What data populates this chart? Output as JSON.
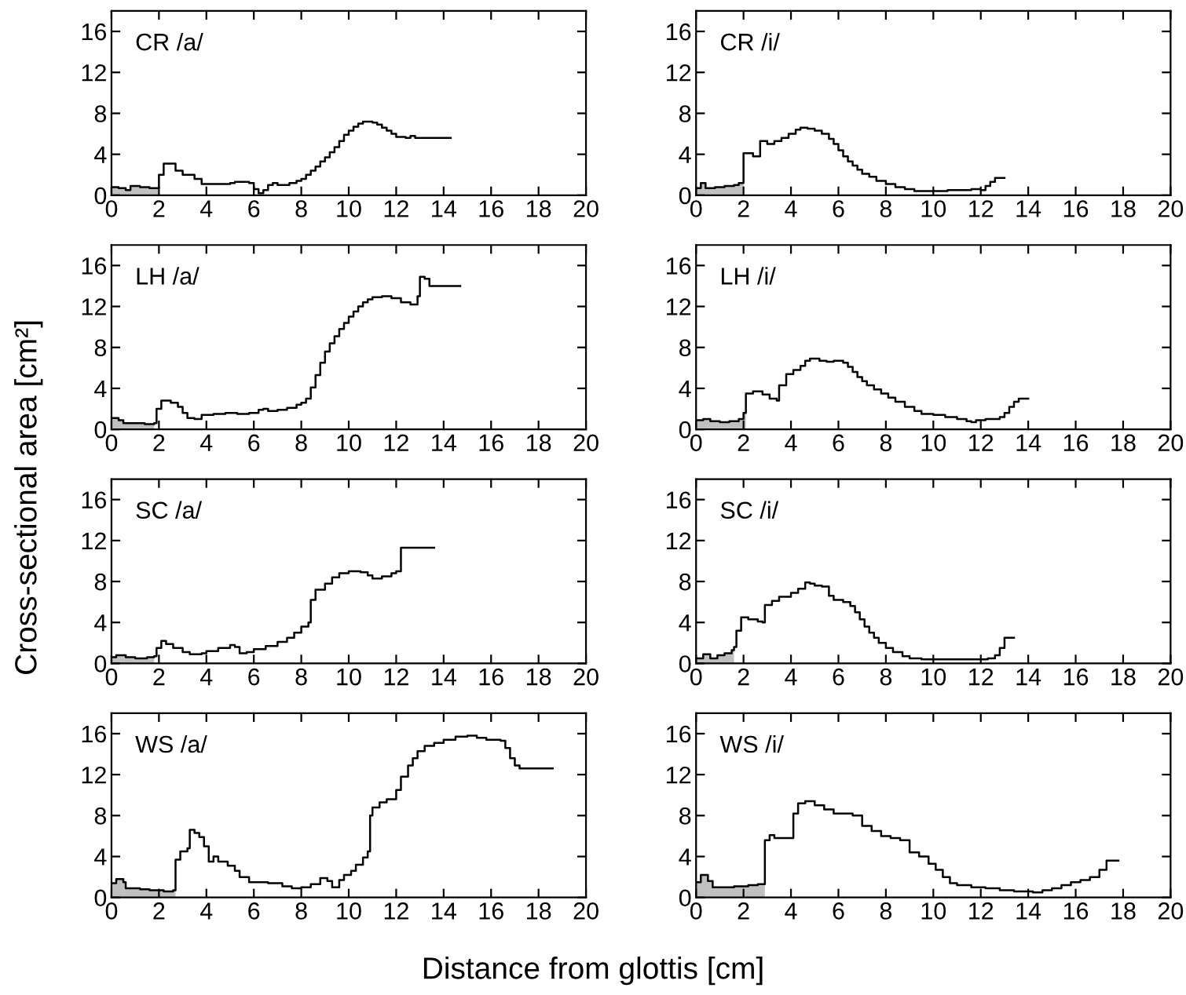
{
  "chart_data": [
    {
      "type": "step",
      "title": "CR /a/",
      "xlabel": "Distance from glottis [cm]",
      "ylabel": "Cross-sectional area [cm²]",
      "xlim": [
        0,
        20
      ],
      "ylim": [
        0,
        18
      ],
      "xticks": [
        0,
        2,
        4,
        6,
        8,
        10,
        12,
        14,
        16,
        18,
        20
      ],
      "yticks": [
        0,
        4,
        8,
        12,
        16
      ],
      "series": [
        {
          "type": "area",
          "color": "#c0c0c0",
          "x": [
            0,
            0.3,
            0.6,
            0.8,
            1.2,
            1.6,
            2.0
          ],
          "values": [
            0.8,
            0.7,
            0.5,
            0.9,
            0.8,
            0.7,
            0.7
          ]
        },
        {
          "color": "#000000",
          "x": [
            0,
            0.3,
            0.6,
            0.8,
            1.2,
            1.6,
            2.0,
            2.2,
            2.7,
            3.0,
            3.5,
            3.8,
            5.0,
            5.2,
            5.8,
            6.0,
            6.2,
            6.4,
            6.6,
            6.8,
            7.0,
            7.5,
            7.8,
            8.0,
            8.2,
            8.4,
            8.6,
            8.8,
            9.0,
            9.2,
            9.4,
            9.6,
            9.8,
            10.0,
            10.2,
            10.4,
            10.6,
            11.0,
            11.2,
            11.4,
            11.6,
            11.8,
            12.0,
            12.4,
            12.6,
            12.8,
            14.3
          ],
          "values": [
            0.8,
            0.7,
            0.5,
            0.9,
            0.8,
            0.7,
            2.0,
            3.1,
            2.4,
            2.0,
            1.6,
            1.1,
            1.2,
            1.3,
            1.2,
            0.6,
            0.2,
            0.5,
            1.0,
            1.2,
            1.0,
            1.2,
            1.4,
            1.6,
            2.0,
            2.4,
            2.8,
            3.3,
            3.7,
            4.2,
            4.7,
            5.3,
            5.9,
            6.3,
            6.7,
            7.0,
            7.2,
            7.1,
            6.9,
            6.6,
            6.3,
            6.0,
            5.7,
            5.6,
            5.8,
            5.6,
            5.6
          ]
        }
      ]
    },
    {
      "type": "step",
      "title": "CR /i/",
      "xlim": [
        0,
        20
      ],
      "ylim": [
        0,
        18
      ],
      "xticks": [
        0,
        2,
        4,
        6,
        8,
        10,
        12,
        14,
        16,
        18,
        20
      ],
      "yticks": [
        0,
        4,
        8,
        12,
        16
      ],
      "series": [
        {
          "type": "area",
          "color": "#c0c0c0",
          "x": [
            0,
            0.2,
            0.4,
            0.8,
            1.2,
            1.6,
            1.8,
            2.0
          ],
          "values": [
            0.7,
            1.2,
            0.7,
            0.8,
            0.9,
            1.0,
            1.2,
            1.2
          ]
        },
        {
          "color": "#000000",
          "x": [
            0,
            0.2,
            0.4,
            0.8,
            1.2,
            1.6,
            1.8,
            2.0,
            2.4,
            2.7,
            3.0,
            3.3,
            3.6,
            3.9,
            4.2,
            4.4,
            4.7,
            5.0,
            5.3,
            5.6,
            5.8,
            6.0,
            6.2,
            6.4,
            6.6,
            6.8,
            7.0,
            7.3,
            7.6,
            8.0,
            8.4,
            8.8,
            9.2,
            10.2,
            10.6,
            11.2,
            11.6,
            12.0,
            12.2,
            12.4,
            12.6,
            13.0
          ],
          "values": [
            0.7,
            1.2,
            0.7,
            0.8,
            0.9,
            1.0,
            1.2,
            4.1,
            3.8,
            5.3,
            5.0,
            5.3,
            5.6,
            6.0,
            6.4,
            6.6,
            6.5,
            6.3,
            6.0,
            5.5,
            5.0,
            4.4,
            3.8,
            3.3,
            2.9,
            2.5,
            2.1,
            1.8,
            1.4,
            1.1,
            0.8,
            0.6,
            0.4,
            0.4,
            0.5,
            0.5,
            0.6,
            0.5,
            0.9,
            1.3,
            1.7,
            1.7
          ]
        }
      ]
    },
    {
      "type": "step",
      "title": "LH /a/",
      "xlim": [
        0,
        20
      ],
      "ylim": [
        0,
        18
      ],
      "xticks": [
        0,
        2,
        4,
        6,
        8,
        10,
        12,
        14,
        16,
        18,
        20
      ],
      "yticks": [
        0,
        4,
        8,
        12,
        16
      ],
      "series": [
        {
          "type": "area",
          "color": "#c0c0c0",
          "x": [
            0,
            0.3,
            0.5,
            1.0,
            1.4,
            1.8
          ],
          "values": [
            1.1,
            0.9,
            0.6,
            0.6,
            0.5,
            0.5
          ]
        },
        {
          "color": "#000000",
          "x": [
            0,
            0.3,
            0.5,
            1.0,
            1.4,
            1.8,
            1.9,
            2.1,
            2.5,
            2.8,
            3.0,
            3.2,
            3.5,
            3.8,
            4.3,
            4.8,
            5.3,
            5.8,
            6.2,
            6.4,
            6.6,
            7.0,
            7.4,
            7.8,
            8.0,
            8.2,
            8.4,
            8.6,
            8.8,
            9.0,
            9.2,
            9.4,
            9.6,
            9.8,
            10.0,
            10.2,
            10.4,
            10.6,
            10.8,
            11.0,
            11.4,
            11.8,
            12.2,
            12.6,
            12.9,
            13.0,
            13.2,
            13.4,
            14.7
          ],
          "values": [
            1.1,
            0.9,
            0.6,
            0.6,
            0.5,
            0.6,
            2.0,
            2.8,
            2.6,
            2.2,
            1.6,
            1.1,
            1.0,
            1.4,
            1.5,
            1.6,
            1.5,
            1.6,
            1.9,
            2.0,
            1.8,
            1.9,
            2.1,
            2.4,
            2.6,
            3.0,
            4.1,
            5.3,
            6.5,
            7.6,
            8.4,
            9.1,
            9.8,
            10.4,
            11.0,
            11.5,
            12.0,
            12.4,
            12.7,
            12.9,
            13.0,
            12.8,
            12.4,
            12.2,
            13.0,
            14.9,
            14.7,
            14.0,
            14.0
          ]
        }
      ]
    },
    {
      "type": "step",
      "title": "LH /i/",
      "xlim": [
        0,
        20
      ],
      "ylim": [
        0,
        18
      ],
      "xticks": [
        0,
        2,
        4,
        6,
        8,
        10,
        12,
        14,
        16,
        18,
        20
      ],
      "yticks": [
        0,
        4,
        8,
        12,
        16
      ],
      "series": [
        {
          "type": "area",
          "color": "#c0c0c0",
          "x": [
            0,
            0.3,
            0.6,
            1.0,
            1.4,
            1.8,
            2.0,
            2.1
          ],
          "values": [
            0.9,
            1.0,
            0.8,
            0.7,
            0.8,
            1.0,
            1.6,
            1.6
          ]
        },
        {
          "color": "#000000",
          "x": [
            0,
            0.3,
            0.6,
            1.0,
            1.4,
            1.8,
            2.0,
            2.1,
            2.4,
            2.8,
            3.1,
            3.4,
            3.5,
            3.8,
            4.1,
            4.4,
            4.6,
            4.8,
            5.2,
            5.5,
            5.8,
            6.2,
            6.4,
            6.6,
            6.8,
            7.0,
            7.2,
            7.5,
            7.8,
            8.1,
            8.4,
            8.8,
            9.2,
            9.5,
            10.0,
            10.5,
            11.0,
            11.4,
            11.6,
            11.8,
            12.2,
            12.8,
            13.0,
            13.2,
            13.4,
            13.6,
            14.0
          ],
          "values": [
            0.9,
            1.0,
            0.8,
            0.7,
            0.8,
            1.0,
            1.6,
            3.5,
            3.7,
            3.4,
            3.0,
            2.8,
            4.3,
            5.4,
            5.8,
            6.2,
            6.7,
            6.9,
            6.7,
            6.6,
            6.7,
            6.5,
            6.1,
            5.6,
            5.1,
            4.7,
            4.3,
            3.9,
            3.5,
            3.1,
            2.7,
            2.2,
            1.8,
            1.5,
            1.4,
            1.2,
            1.0,
            0.8,
            0.7,
            0.9,
            1.0,
            1.2,
            1.6,
            2.2,
            2.7,
            3.0,
            3.0
          ]
        }
      ]
    },
    {
      "type": "step",
      "title": "SC /a/",
      "xlim": [
        0,
        20
      ],
      "ylim": [
        0,
        18
      ],
      "xticks": [
        0,
        2,
        4,
        6,
        8,
        10,
        12,
        14,
        16,
        18,
        20
      ],
      "yticks": [
        0,
        4,
        8,
        12,
        16
      ],
      "series": [
        {
          "type": "area",
          "color": "#c0c0c0",
          "x": [
            0,
            0.2,
            0.6,
            1.0,
            1.5,
            1.8
          ],
          "values": [
            0.6,
            0.8,
            0.6,
            0.5,
            0.6,
            0.6
          ]
        },
        {
          "color": "#000000",
          "x": [
            0,
            0.2,
            0.6,
            1.0,
            1.5,
            1.8,
            1.9,
            2.1,
            2.3,
            2.6,
            3.0,
            3.3,
            3.8,
            4.0,
            4.5,
            5.0,
            5.2,
            5.4,
            5.7,
            6.0,
            6.5,
            7.0,
            7.4,
            7.7,
            8.0,
            8.3,
            8.4,
            8.6,
            9.0,
            9.3,
            9.6,
            10.0,
            10.5,
            10.8,
            11.0,
            11.4,
            11.8,
            12.0,
            12.2,
            13.6
          ],
          "values": [
            0.6,
            0.8,
            0.6,
            0.5,
            0.6,
            0.7,
            1.5,
            2.2,
            1.9,
            1.5,
            1.1,
            0.9,
            1.0,
            1.2,
            1.5,
            1.8,
            1.6,
            1.0,
            1.1,
            1.4,
            1.7,
            2.1,
            2.5,
            3.0,
            3.6,
            4.0,
            6.2,
            7.2,
            7.8,
            8.4,
            8.8,
            9.0,
            8.9,
            8.6,
            8.3,
            8.5,
            8.8,
            9.0,
            11.3,
            11.3
          ]
        }
      ]
    },
    {
      "type": "step",
      "title": "SC /i/",
      "xlim": [
        0,
        20
      ],
      "ylim": [
        0,
        18
      ],
      "xticks": [
        0,
        2,
        4,
        6,
        8,
        10,
        12,
        14,
        16,
        18,
        20
      ],
      "yticks": [
        0,
        4,
        8,
        12,
        16
      ],
      "series": [
        {
          "type": "area",
          "color": "#c0c0c0",
          "x": [
            0,
            0.3,
            0.6,
            0.9,
            1.2,
            1.5,
            1.6
          ],
          "values": [
            0.5,
            0.9,
            0.5,
            0.8,
            1.0,
            1.3,
            1.3
          ]
        },
        {
          "color": "#000000",
          "x": [
            0,
            0.3,
            0.6,
            0.9,
            1.2,
            1.5,
            1.6,
            1.7,
            1.9,
            2.2,
            2.6,
            2.8,
            2.9,
            3.2,
            3.5,
            4.0,
            4.3,
            4.6,
            4.8,
            5.0,
            5.3,
            5.6,
            5.8,
            6.2,
            6.5,
            6.7,
            6.9,
            7.1,
            7.3,
            7.5,
            7.7,
            8.0,
            8.3,
            8.7,
            9.0,
            9.5,
            12.0,
            12.3,
            12.6,
            12.8,
            13.0,
            13.4
          ],
          "values": [
            0.5,
            0.9,
            0.5,
            0.8,
            1.0,
            1.3,
            1.6,
            3.2,
            4.5,
            4.3,
            4.1,
            4.0,
            5.7,
            6.1,
            6.5,
            6.9,
            7.3,
            7.9,
            7.8,
            7.6,
            7.5,
            6.6,
            6.2,
            6.0,
            5.6,
            5.0,
            4.3,
            3.6,
            3.0,
            2.5,
            2.0,
            1.5,
            1.1,
            0.7,
            0.5,
            0.4,
            0.4,
            0.5,
            0.8,
            1.5,
            2.5,
            2.5
          ]
        }
      ]
    },
    {
      "type": "step",
      "title": "WS /a/",
      "xlim": [
        0,
        20
      ],
      "ylim": [
        0,
        18
      ],
      "xticks": [
        0,
        2,
        4,
        6,
        8,
        10,
        12,
        14,
        16,
        18,
        20
      ],
      "yticks": [
        0,
        4,
        8,
        12,
        16
      ],
      "series": [
        {
          "type": "area",
          "color": "#c0c0c0",
          "x": [
            0,
            0.2,
            0.5,
            0.6,
            1.2,
            1.6,
            2.2,
            2.7
          ],
          "values": [
            1.4,
            1.8,
            1.5,
            0.9,
            0.8,
            0.7,
            0.6,
            0.6
          ]
        },
        {
          "color": "#000000",
          "x": [
            0,
            0.2,
            0.5,
            0.6,
            1.2,
            1.6,
            2.2,
            2.6,
            2.7,
            2.9,
            3.2,
            3.3,
            3.5,
            3.7,
            3.9,
            4.1,
            4.3,
            4.5,
            4.9,
            5.2,
            5.4,
            5.8,
            6.6,
            7.2,
            7.6,
            8.0,
            8.4,
            8.8,
            9.1,
            9.3,
            9.6,
            9.8,
            10.1,
            10.3,
            10.6,
            10.8,
            10.9,
            11.0,
            11.3,
            11.6,
            12.0,
            12.2,
            12.5,
            12.7,
            12.9,
            13.2,
            13.6,
            14.0,
            14.5,
            15.0,
            15.4,
            15.8,
            16.4,
            16.6,
            16.8,
            17.0,
            17.2,
            18.6
          ],
          "values": [
            1.4,
            1.8,
            1.5,
            0.9,
            0.8,
            0.7,
            0.6,
            0.7,
            3.7,
            4.5,
            4.8,
            6.6,
            6.3,
            5.9,
            5.0,
            3.5,
            4.0,
            3.5,
            3.1,
            2.6,
            2.0,
            1.5,
            1.4,
            1.1,
            0.9,
            1.0,
            1.3,
            1.9,
            1.6,
            1.0,
            1.7,
            2.2,
            2.6,
            3.2,
            3.9,
            4.5,
            8.0,
            8.8,
            9.3,
            9.6,
            10.5,
            11.8,
            12.9,
            13.6,
            14.3,
            14.8,
            15.1,
            15.4,
            15.7,
            15.8,
            15.6,
            15.4,
            15.3,
            14.6,
            13.6,
            12.9,
            12.6,
            12.6
          ]
        }
      ]
    },
    {
      "type": "step",
      "title": "WS /i/",
      "xlim": [
        0,
        20
      ],
      "ylim": [
        0,
        18
      ],
      "xticks": [
        0,
        2,
        4,
        6,
        8,
        10,
        12,
        14,
        16,
        18,
        20
      ],
      "yticks": [
        0,
        4,
        8,
        12,
        16
      ],
      "series": [
        {
          "type": "area",
          "color": "#c0c0c0",
          "x": [
            0,
            0.2,
            0.5,
            0.7,
            1.2,
            1.6,
            2.2,
            2.6,
            2.9
          ],
          "values": [
            1.5,
            2.2,
            1.6,
            1.0,
            1.0,
            1.1,
            1.2,
            1.3,
            1.3
          ]
        },
        {
          "color": "#000000",
          "x": [
            0,
            0.2,
            0.5,
            0.7,
            1.2,
            1.6,
            2.2,
            2.6,
            2.9,
            3.1,
            3.3,
            4.0,
            4.1,
            4.3,
            4.6,
            5.0,
            5.4,
            5.8,
            6.2,
            6.6,
            7.0,
            7.4,
            7.8,
            8.2,
            8.6,
            9.0,
            9.4,
            9.8,
            10.1,
            10.4,
            10.7,
            11.0,
            11.6,
            12.2,
            12.8,
            13.4,
            14.2,
            14.6,
            15.0,
            15.4,
            15.8,
            16.2,
            16.6,
            17.0,
            17.3,
            17.8
          ],
          "values": [
            1.5,
            2.2,
            1.6,
            1.0,
            1.0,
            1.1,
            1.2,
            1.3,
            5.6,
            6.1,
            5.8,
            5.8,
            8.2,
            9.2,
            9.4,
            9.0,
            8.6,
            8.2,
            8.2,
            8.0,
            7.0,
            6.5,
            6.0,
            5.8,
            5.6,
            4.4,
            4.0,
            3.3,
            2.7,
            2.0,
            1.4,
            1.2,
            1.0,
            0.9,
            0.7,
            0.6,
            0.5,
            0.7,
            0.9,
            1.2,
            1.5,
            1.7,
            2.0,
            2.7,
            3.6,
            3.6
          ]
        }
      ]
    }
  ]
}
